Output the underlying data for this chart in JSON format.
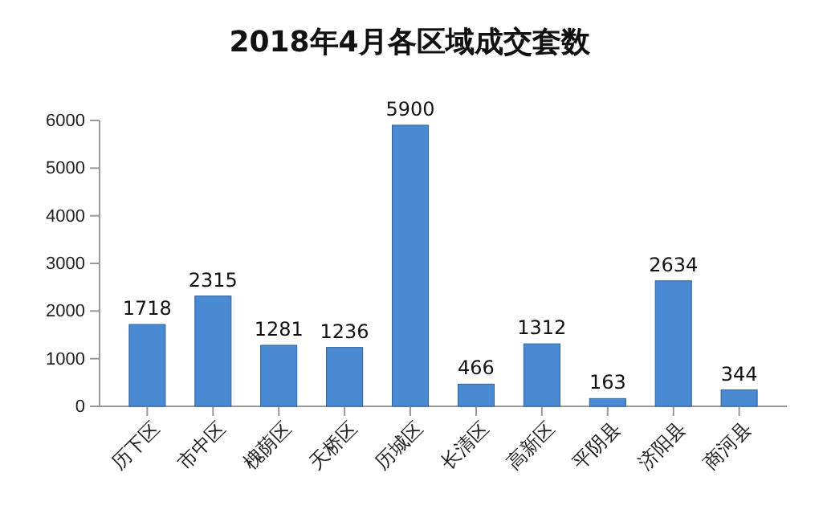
{
  "chart_data": {
    "type": "bar",
    "title": "2018年4月各区域成交套数",
    "categories": [
      "历下区",
      "市中区",
      "槐荫区",
      "天桥区",
      "历城区",
      "长清区",
      "高新区",
      "平阴县",
      "济阳县",
      "商河县"
    ],
    "values": [
      1718,
      2315,
      1281,
      1236,
      5900,
      466,
      1312,
      163,
      2634,
      344
    ],
    "color": "#4a8ad3",
    "ylim": [
      0,
      6000
    ],
    "yticks": [
      0,
      1000,
      2000,
      3000,
      4000,
      5000,
      6000
    ],
    "data_labels": true
  }
}
